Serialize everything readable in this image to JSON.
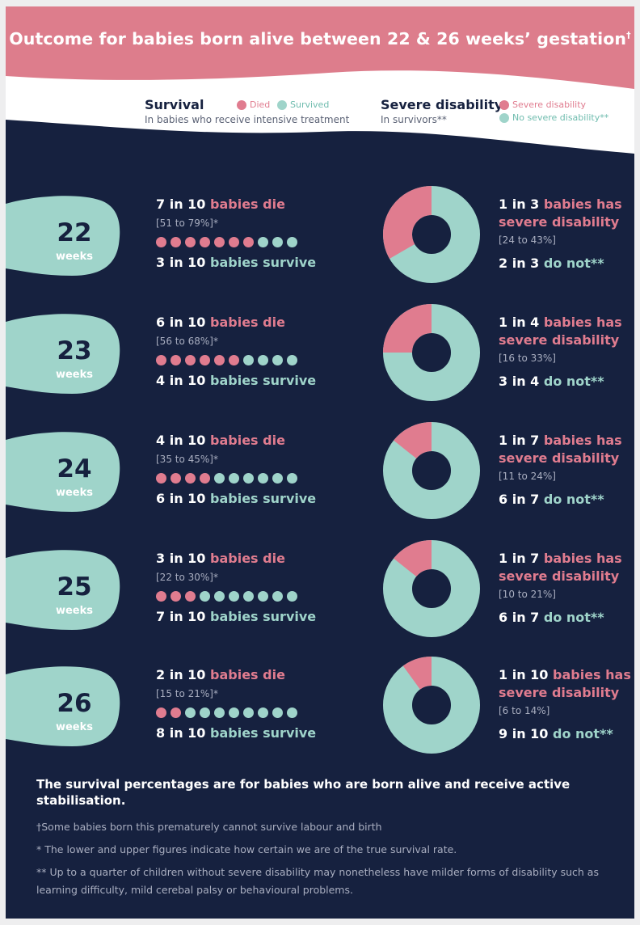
{
  "title": "Outcome for babies born alive between 22 & 26 weeks’ gestation",
  "title_mark": "†",
  "colors": {
    "navy": "#16213f",
    "pink": "#e07c8f",
    "teal": "#9fd4ca",
    "header": "#dd7d8c"
  },
  "legend": {
    "survival": {
      "title": "Survival",
      "subtitle": "In babies who receive intensive treatment",
      "died": "Died",
      "survived": "Survived"
    },
    "disability": {
      "title": "Severe disability",
      "subtitle": "In survivors**",
      "severe": "Severe disability",
      "none": "No severe disability**"
    }
  },
  "rows": [
    {
      "week": "22",
      "week_label": "weeks",
      "die_count": "7 in 10",
      "die_text": "babies die",
      "die_range": "[51 to 79%]*",
      "died_of_10": 7,
      "survive_count": "3 in 10",
      "survive_text": "babies survive",
      "dis_count": "1 in 3",
      "dis_text1": "babies has",
      "dis_text2": "severe disability",
      "dis_range": "[24 to 43%]",
      "not_count": "2 in 3",
      "not_text": "do not**",
      "severe_fraction": 0.3333
    },
    {
      "week": "23",
      "week_label": "weeks",
      "die_count": "6 in 10",
      "die_text": "babies die",
      "die_range": "[56 to 68%]*",
      "died_of_10": 6,
      "survive_count": "4 in 10",
      "survive_text": "babies survive",
      "dis_count": "1 in 4",
      "dis_text1": "babies has",
      "dis_text2": "severe disability",
      "dis_range": "[16 to 33%]",
      "not_count": "3 in 4",
      "not_text": "do not**",
      "severe_fraction": 0.25
    },
    {
      "week": "24",
      "week_label": "weeks",
      "die_count": "4 in 10",
      "die_text": "babies die",
      "die_range": "[35 to 45%]*",
      "died_of_10": 4,
      "survive_count": "6 in 10",
      "survive_text": "babies survive",
      "dis_count": "1 in 7",
      "dis_text1": "babies has",
      "dis_text2": "severe disability",
      "dis_range": "[11 to 24%]",
      "not_count": "6 in 7",
      "not_text": "do not**",
      "severe_fraction": 0.1429
    },
    {
      "week": "25",
      "week_label": "weeks",
      "die_count": "3 in 10",
      "die_text": "babies die",
      "die_range": "[22 to 30%]*",
      "died_of_10": 3,
      "survive_count": "7 in 10",
      "survive_text": "babies survive",
      "dis_count": "1 in 7",
      "dis_text1": "babies has",
      "dis_text2": "severe disability",
      "dis_range": "[10 to 21%]",
      "not_count": "6 in 7",
      "not_text": "do not**",
      "severe_fraction": 0.1429
    },
    {
      "week": "26",
      "week_label": "weeks",
      "die_count": "2 in 10",
      "die_text": "babies die",
      "die_range": "[15 to 21%]*",
      "died_of_10": 2,
      "survive_count": "8 in 10",
      "survive_text": "babies survive",
      "dis_count": "1 in 10",
      "dis_text1": "babies has",
      "dis_text2": "severe disability",
      "dis_range": "[6 to 14%]",
      "not_count": "9 in 10",
      "not_text": "do not**",
      "severe_fraction": 0.1
    }
  ],
  "footer": {
    "main": "The survival percentages are for babies who are born alive and receive active stabilisation.",
    "note1": "†Some babies born this prematurely cannot survive labour and birth",
    "note2": "* The lower and upper figures indicate how certain we are of the true survival rate.",
    "note3": "** Up to a quarter of children without severe disability may nonetheless have milder forms of disability such as learning difficulty, mild cerebal palsy or behavioural problems."
  }
}
